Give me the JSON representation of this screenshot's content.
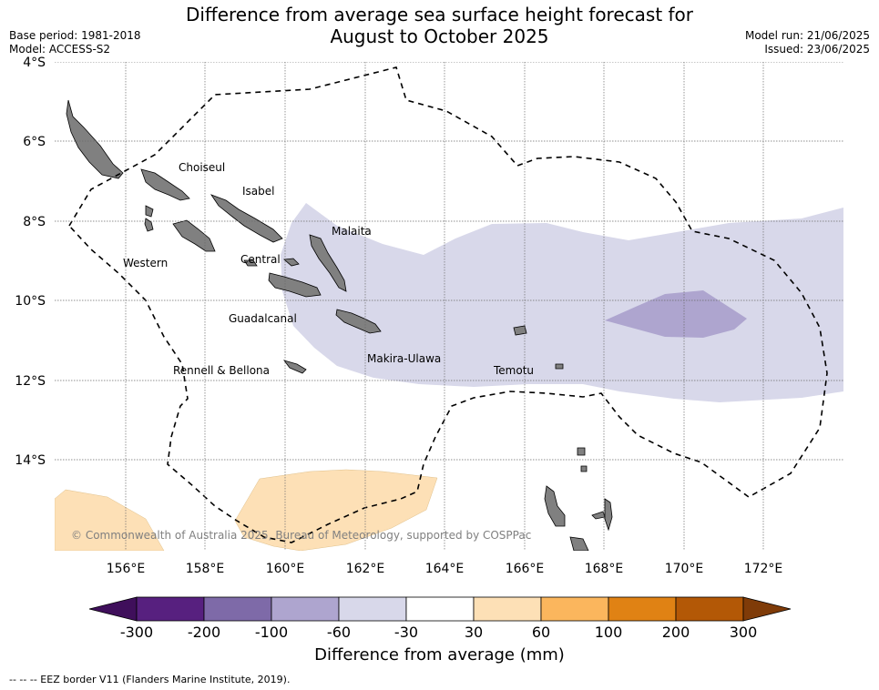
{
  "header": {
    "title_line1": "Difference from average sea surface height forecast for",
    "title_line2": "August to October 2025",
    "base_period": "Base period: 1981-2018",
    "model": "Model: ACCESS-S2",
    "model_run": "Model run: 21/06/2025",
    "issued": "Issued: 23/06/2025"
  },
  "map": {
    "lon_ticks": [
      "156°E",
      "158°E",
      "160°E",
      "162°E",
      "164°E",
      "166°E",
      "168°E",
      "170°E",
      "172°E"
    ],
    "lat_ticks": [
      "4°S",
      "6°S",
      "8°S",
      "10°S",
      "12°S",
      "14°S"
    ],
    "land_color": "#808080",
    "ocean_color": "#ffffff",
    "eez_style": "dashed black",
    "province_labels": [
      {
        "name": "Choiseul"
      },
      {
        "name": "Isabel"
      },
      {
        "name": "Malaita"
      },
      {
        "name": "Western"
      },
      {
        "name": "Central"
      },
      {
        "name": "Guadalcanal"
      },
      {
        "name": "Makira-Ulawa"
      },
      {
        "name": "Rennell & Bellona"
      },
      {
        "name": "Temotu"
      }
    ],
    "copyright": "© Commonwealth of Australia 2025, Bureau of Meteorology, supported by COSPPac"
  },
  "colorbar": {
    "title": "Difference from average (mm)",
    "tick_labels": [
      "-300",
      "-200",
      "-100",
      "-60",
      "-30",
      "30",
      "60",
      "100",
      "200",
      "300"
    ],
    "colors": [
      "#3f0f5b",
      "#57207f",
      "#7e6aa8",
      "#aea5cf",
      "#d8d8ea",
      "#ffffff",
      "#fde0b6",
      "#fbb65d",
      "#e08214",
      "#b35806",
      "#7f3b08"
    ]
  },
  "footnote": "--  --  -- EEZ border V11 (Flanders Marine Institute, 2019)."
}
